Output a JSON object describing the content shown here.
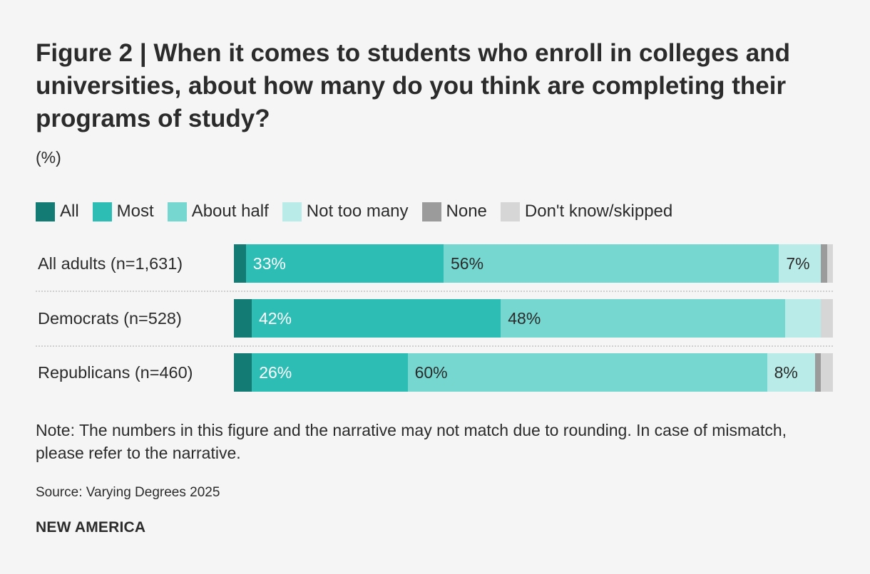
{
  "title": "Figure 2 | When it comes to students who enroll in colleges and universities, about how many do you think are completing their programs of study?",
  "unit": "(%)",
  "note": "Note: The numbers in this figure and the narrative may not match due to rounding. In case of mismatch, please refer to the narrative.",
  "source": "Source: Varying Degrees 2025",
  "brand": "NEW AMERICA",
  "chart_data": {
    "type": "bar",
    "orientation": "horizontal",
    "stacked": true,
    "title": "Figure 2 | When it comes to students who enroll in colleges and universities, about how many do you think are completing their programs of study?",
    "ylabel": "(%)",
    "xlim": [
      0,
      100
    ],
    "legend_position": "top-left",
    "grid": false,
    "categories": [
      "All adults (n=1,631)",
      "Democrats (n=528)",
      "Republicans (n=460)"
    ],
    "series": [
      {
        "name": "All",
        "color": "#147a74",
        "values": [
          2,
          3,
          3
        ],
        "labels": [
          "",
          "",
          ""
        ]
      },
      {
        "name": "Most",
        "color": "#2ebdb4",
        "values": [
          33,
          42,
          26
        ],
        "labels": [
          "33%",
          "42%",
          "26%"
        ]
      },
      {
        "name": "About half",
        "color": "#76d6d0",
        "values": [
          56,
          48,
          60
        ],
        "labels": [
          "56%",
          "48%",
          "60%"
        ]
      },
      {
        "name": "Not too many",
        "color": "#b9ece8",
        "values": [
          7,
          6,
          8
        ],
        "labels": [
          "7%",
          "",
          "8%"
        ]
      },
      {
        "name": "None",
        "color": "#9b9b9b",
        "values": [
          1,
          0,
          1
        ],
        "labels": [
          "",
          "",
          ""
        ]
      },
      {
        "name": "Don't know/skipped",
        "color": "#d6d6d6",
        "values": [
          1,
          2,
          2
        ],
        "labels": [
          "",
          "",
          ""
        ]
      }
    ]
  }
}
